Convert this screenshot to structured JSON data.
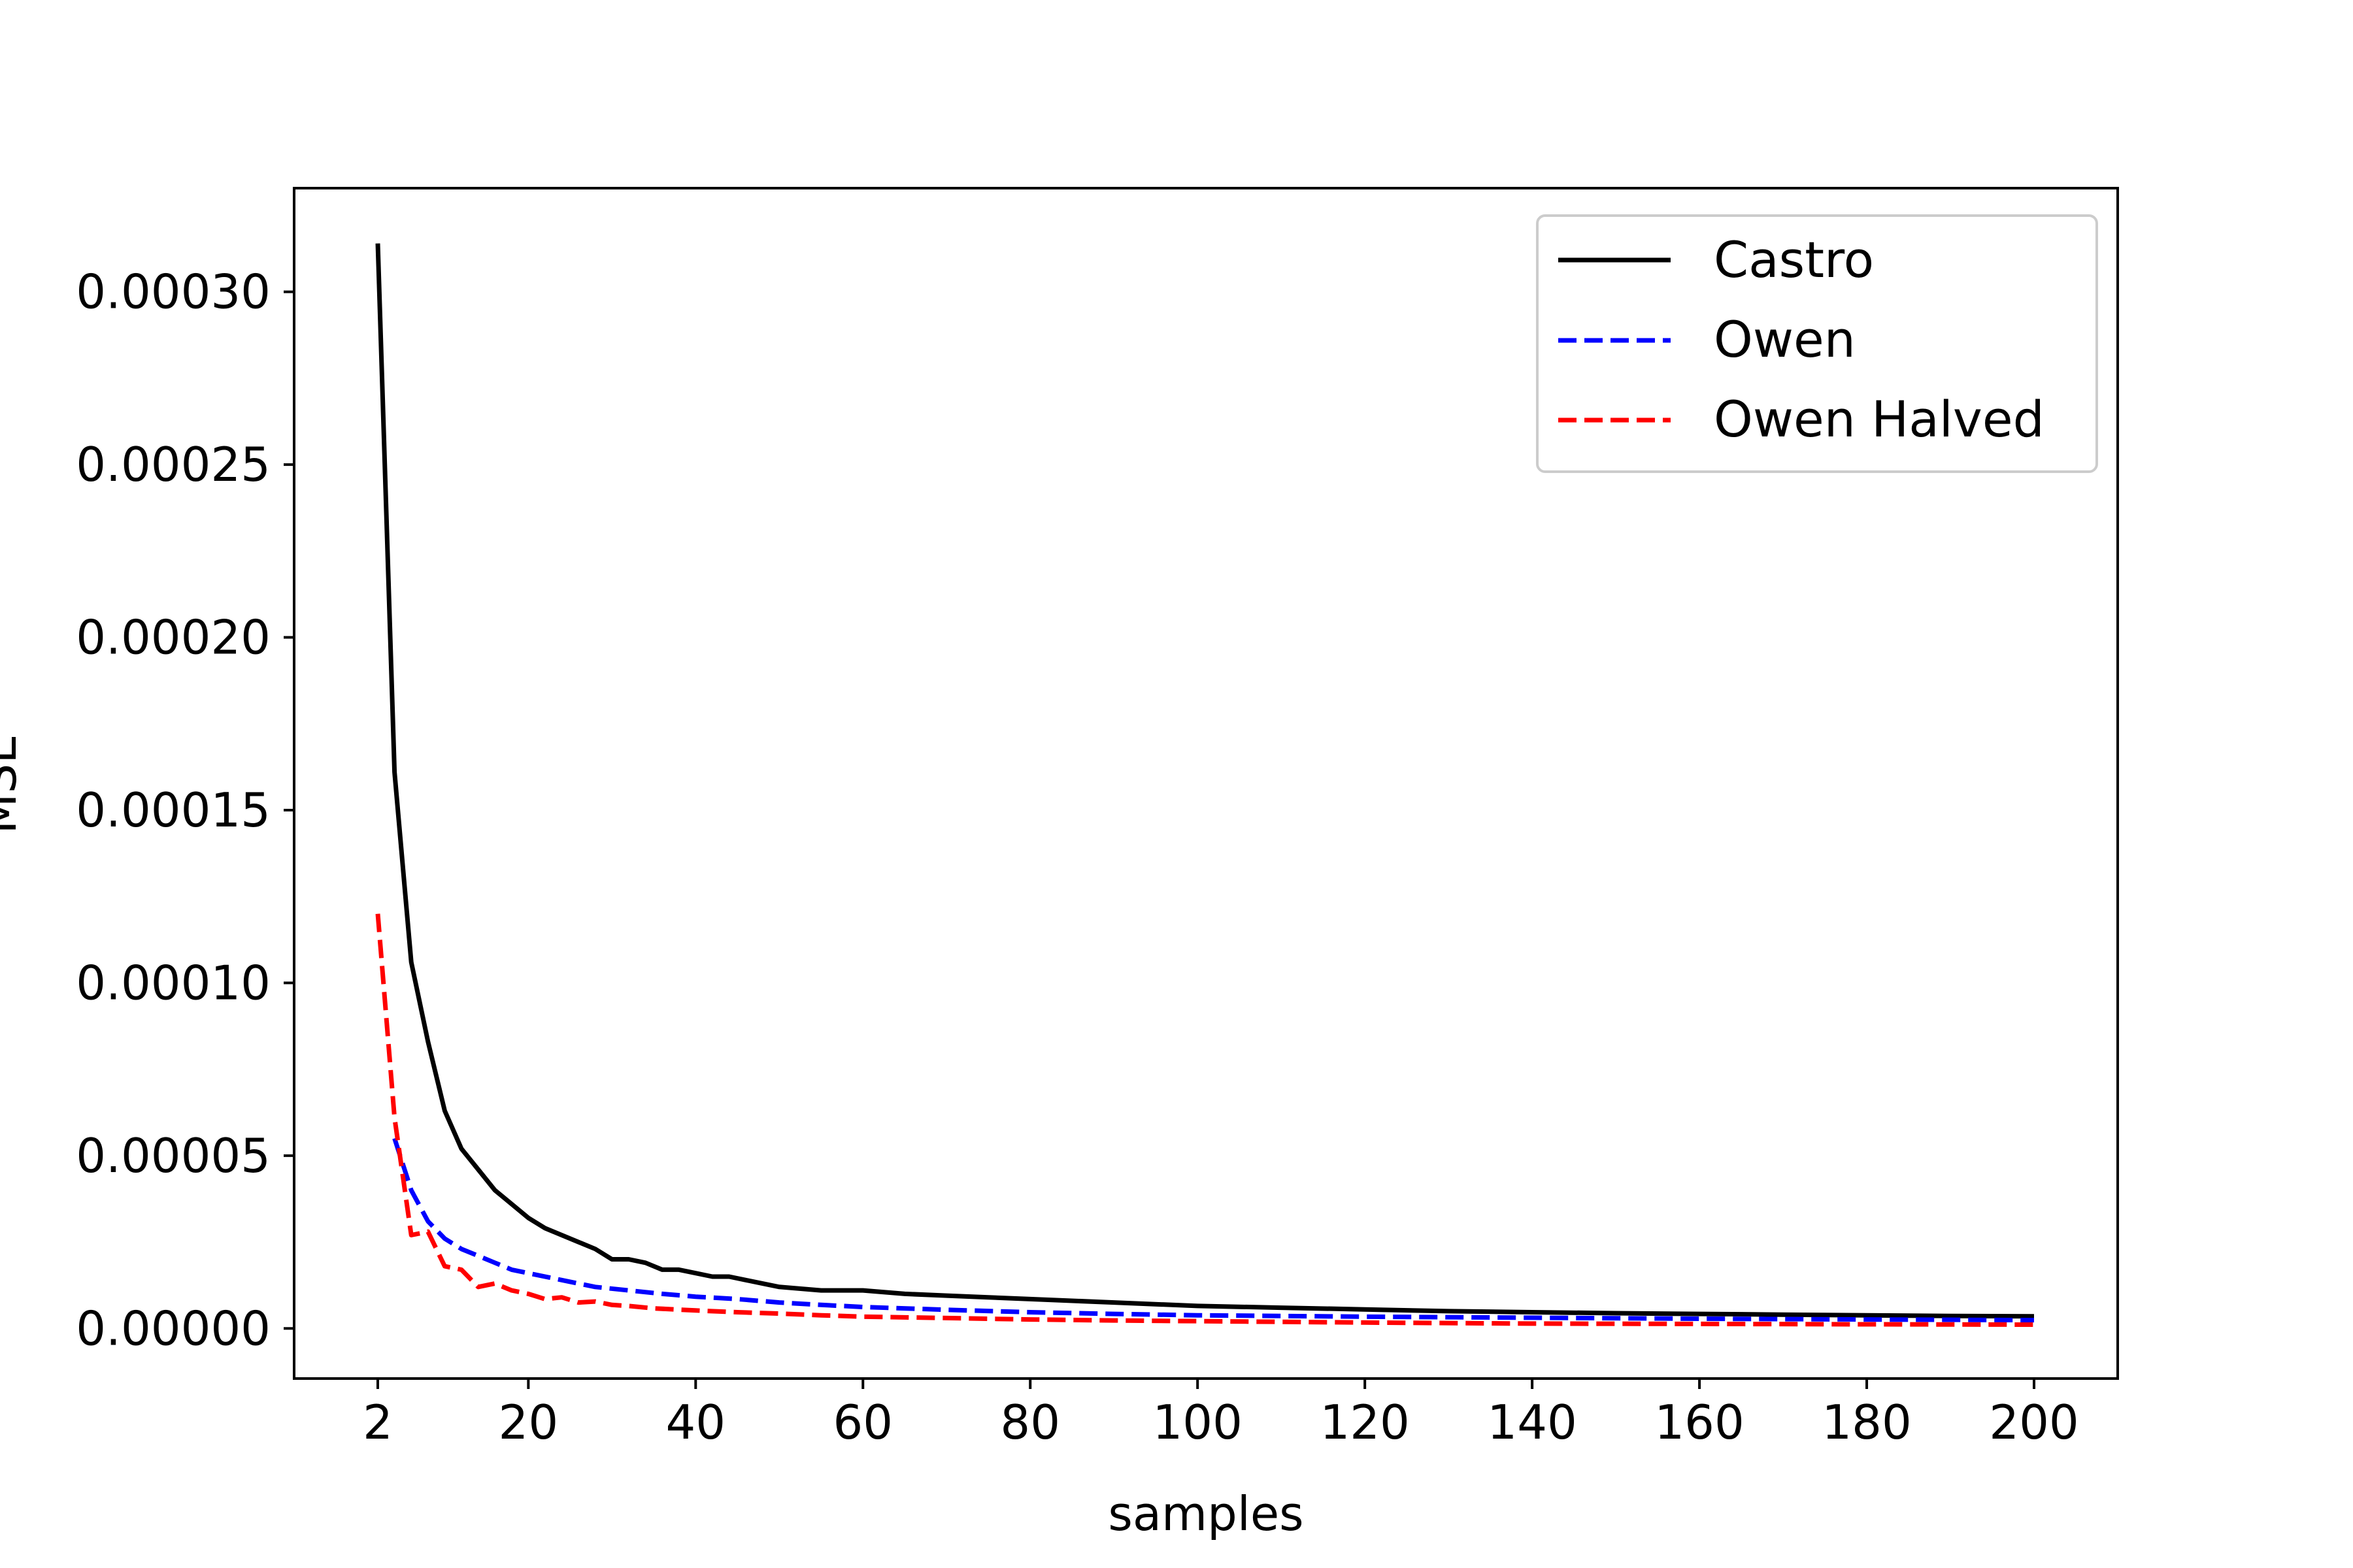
{
  "chart_data": {
    "type": "line",
    "title": "",
    "xlabel": "samples",
    "ylabel": "MSE",
    "xlim": [
      -8,
      210
    ],
    "ylim": [
      -1.45e-05,
      0.00033
    ],
    "xticks": [
      2,
      20,
      40,
      60,
      80,
      100,
      120,
      140,
      160,
      180,
      200
    ],
    "xtick_labels": [
      "2",
      "20",
      "40",
      "60",
      "80",
      "100",
      "120",
      "140",
      "160",
      "180",
      "200"
    ],
    "yticks": [
      0,
      5e-05,
      0.0001,
      0.00015,
      0.0002,
      0.00025,
      0.0003
    ],
    "ytick_labels": [
      "0.00000",
      "0.00005",
      "0.00010",
      "0.00015",
      "0.00020",
      "0.00025",
      "0.00030"
    ],
    "grid": false,
    "legend_position": "upper right",
    "legend_labels": [
      "Castro",
      "Owen",
      "Owen Halved"
    ],
    "series": [
      {
        "name": "Castro",
        "color": "#000000",
        "style": "solid",
        "x": [
          2,
          4,
          6,
          8,
          10,
          12,
          14,
          16,
          18,
          20,
          22,
          24,
          26,
          28,
          30,
          32,
          34,
          36,
          38,
          40,
          42,
          44,
          46,
          48,
          50,
          55,
          60,
          65,
          70,
          75,
          80,
          90,
          100,
          110,
          120,
          130,
          140,
          150,
          160,
          170,
          180,
          190,
          200
        ],
        "y": [
          0.000314,
          0.000161,
          0.000106,
          8.3e-05,
          6.3e-05,
          5.2e-05,
          4.6e-05,
          4e-05,
          3.6e-05,
          3.2e-05,
          2.9e-05,
          2.7e-05,
          2.5e-05,
          2.3e-05,
          2e-05,
          2e-05,
          1.9e-05,
          1.7e-05,
          1.7e-05,
          1.6e-05,
          1.5e-05,
          1.5e-05,
          1.4e-05,
          1.3e-05,
          1.2e-05,
          1.1e-05,
          1.1e-05,
          1e-05,
          9.5e-06,
          9e-06,
          8.5e-06,
          7.5e-06,
          6.5e-06,
          6e-06,
          5.5e-06,
          5e-06,
          4.7e-06,
          4.4e-06,
          4.2e-06,
          4e-06,
          3.8e-06,
          3.6e-06,
          3.5e-06
        ]
      },
      {
        "name": "Owen",
        "color": "#0000ff",
        "style": "dashed",
        "x": [
          4,
          6,
          8,
          10,
          12,
          14,
          16,
          18,
          20,
          24,
          28,
          32,
          36,
          40,
          45,
          50,
          55,
          60,
          70,
          80,
          90,
          100,
          120,
          140,
          160,
          180,
          200
        ],
        "y": [
          5.5e-05,
          4e-05,
          3.1e-05,
          2.6e-05,
          2.3e-05,
          2.1e-05,
          1.9e-05,
          1.7e-05,
          1.6e-05,
          1.4e-05,
          1.2e-05,
          1.1e-05,
          1e-05,
          9.2e-06,
          8.5e-06,
          7.5e-06,
          6.8e-06,
          6.2e-06,
          5.4e-06,
          4.7e-06,
          4.2e-06,
          3.8e-06,
          3.4e-06,
          3.1e-06,
          2.8e-06,
          2.6e-06,
          2.4e-06
        ]
      },
      {
        "name": "Owen Halved",
        "color": "#ff0000",
        "style": "dashed",
        "x": [
          2,
          4,
          6,
          8,
          10,
          12,
          14,
          16,
          18,
          20,
          22,
          24,
          26,
          28,
          30,
          32,
          35,
          40,
          45,
          50,
          55,
          60,
          70,
          80,
          90,
          100,
          120,
          140,
          160,
          180,
          200
        ],
        "y": [
          0.00012,
          6.1e-05,
          2.7e-05,
          2.8e-05,
          1.8e-05,
          1.7e-05,
          1.2e-05,
          1.3e-05,
          1.1e-05,
          1e-05,
          8.5e-06,
          9e-06,
          7.5e-06,
          7.8e-06,
          6.8e-06,
          6.5e-06,
          5.8e-06,
          5.2e-06,
          4.7e-06,
          4.3e-06,
          3.8e-06,
          3.4e-06,
          3e-06,
          2.6e-06,
          2.3e-06,
          2.1e-06,
          1.7e-06,
          1.4e-06,
          1.3e-06,
          1.2e-06,
          1.1e-06
        ]
      }
    ]
  }
}
